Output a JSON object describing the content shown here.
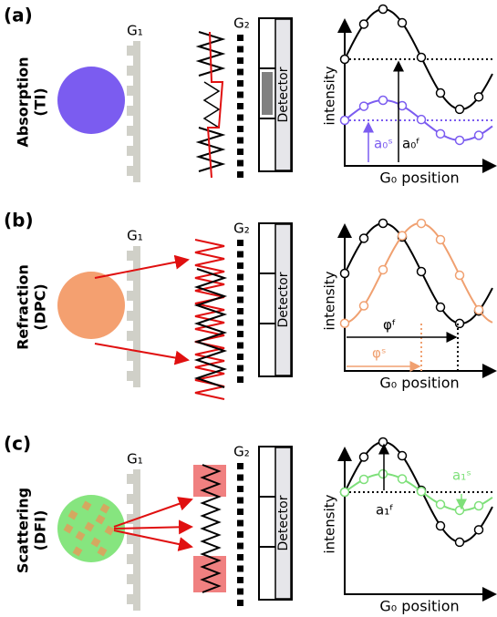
{
  "panels": [
    {
      "label": "(a)",
      "contrast": "Absorption",
      "acronym": "(TI)",
      "g1": "G₁",
      "g2": "G₂",
      "detector": "Detector",
      "y_axis": "intensity",
      "x_axis": "G₀ position",
      "annotations": [
        "a₀ˢ",
        "a₀ᶠ"
      ]
    },
    {
      "label": "(b)",
      "contrast": "Refraction",
      "acronym": "(DPC)",
      "g1": "G₁",
      "g2": "G₂",
      "detector": "Detector",
      "y_axis": "intensity",
      "x_axis": "G₀ position",
      "annotations": [
        "φᶠ",
        "φˢ"
      ]
    },
    {
      "label": "(c)",
      "contrast": "Scattering",
      "acronym": "(DFI)",
      "g1": "G₁",
      "g2": "G₂",
      "detector": "Detector",
      "y_axis": "intensity",
      "x_axis": "G₀ position",
      "annotations": [
        "a₁ᶠ",
        "a₁ˢ"
      ]
    }
  ]
}
